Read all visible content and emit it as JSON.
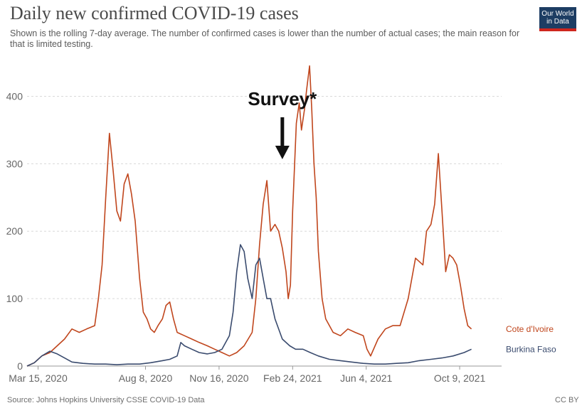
{
  "header": {
    "title": "Daily new confirmed COVID-19 cases",
    "subtitle": "Shown is the rolling 7-day average. The number of confirmed cases is lower than the number of actual cases; the main reason for that is limited testing.",
    "logo_line1": "Our World",
    "logo_line2": "in Data"
  },
  "footer": {
    "source": "Source: Johns Hopkins University CSSE COVID-19 Data",
    "license": "CC BY"
  },
  "annotation": {
    "text": "Survey*",
    "date": "2021-02-10"
  },
  "colors": {
    "cote_divoire": "#c0461d",
    "burkina_faso": "#3a4b6e",
    "grid": "#d9d9d9",
    "axis_text": "#666666"
  },
  "chart_data": {
    "type": "line",
    "title": "Daily new confirmed COVID-19 cases",
    "ylim": [
      0,
      450
    ],
    "yticks": [
      0,
      100,
      200,
      300,
      400
    ],
    "x_range": [
      "2020-02-29",
      "2021-12-05"
    ],
    "xticks": [
      {
        "date": "2020-03-15",
        "label": "Mar 15, 2020"
      },
      {
        "date": "2020-08-08",
        "label": "Aug 8, 2020"
      },
      {
        "date": "2020-11-16",
        "label": "Nov 16, 2020"
      },
      {
        "date": "2021-02-24",
        "label": "Feb 24, 2021"
      },
      {
        "date": "2021-06-04",
        "label": "Jun 4, 2021"
      },
      {
        "date": "2021-10-09",
        "label": "Oct 9, 2021"
      }
    ],
    "grid": "horizontal",
    "legend": "inline-right",
    "series": [
      {
        "name": "Cote d'Ivoire",
        "points": [
          [
            "2020-02-29",
            0
          ],
          [
            "2020-03-10",
            5
          ],
          [
            "2020-03-20",
            15
          ],
          [
            "2020-03-31",
            20
          ],
          [
            "2020-04-10",
            30
          ],
          [
            "2020-04-20",
            40
          ],
          [
            "2020-04-30",
            55
          ],
          [
            "2020-05-10",
            50
          ],
          [
            "2020-05-20",
            55
          ],
          [
            "2020-05-31",
            60
          ],
          [
            "2020-06-05",
            100
          ],
          [
            "2020-06-10",
            150
          ],
          [
            "2020-06-15",
            250
          ],
          [
            "2020-06-20",
            345
          ],
          [
            "2020-06-25",
            290
          ],
          [
            "2020-06-30",
            230
          ],
          [
            "2020-07-05",
            215
          ],
          [
            "2020-07-10",
            270
          ],
          [
            "2020-07-15",
            285
          ],
          [
            "2020-07-20",
            255
          ],
          [
            "2020-07-25",
            215
          ],
          [
            "2020-07-31",
            130
          ],
          [
            "2020-08-05",
            80
          ],
          [
            "2020-08-10",
            70
          ],
          [
            "2020-08-15",
            55
          ],
          [
            "2020-08-20",
            50
          ],
          [
            "2020-08-25",
            60
          ],
          [
            "2020-08-31",
            70
          ],
          [
            "2020-09-05",
            90
          ],
          [
            "2020-09-10",
            95
          ],
          [
            "2020-09-15",
            70
          ],
          [
            "2020-09-20",
            50
          ],
          [
            "2020-09-30",
            45
          ],
          [
            "2020-10-10",
            40
          ],
          [
            "2020-10-20",
            35
          ],
          [
            "2020-10-31",
            30
          ],
          [
            "2020-11-10",
            25
          ],
          [
            "2020-11-20",
            20
          ],
          [
            "2020-11-30",
            15
          ],
          [
            "2020-12-10",
            20
          ],
          [
            "2020-12-20",
            30
          ],
          [
            "2020-12-31",
            50
          ],
          [
            "2021-01-05",
            100
          ],
          [
            "2021-01-10",
            180
          ],
          [
            "2021-01-15",
            240
          ],
          [
            "2021-01-20",
            275
          ],
          [
            "2021-01-25",
            200
          ],
          [
            "2021-01-31",
            210
          ],
          [
            "2021-02-05",
            200
          ],
          [
            "2021-02-10",
            175
          ],
          [
            "2021-02-15",
            140
          ],
          [
            "2021-02-18",
            100
          ],
          [
            "2021-02-21",
            120
          ],
          [
            "2021-02-24",
            230
          ],
          [
            "2021-03-01",
            360
          ],
          [
            "2021-03-05",
            390
          ],
          [
            "2021-03-08",
            350
          ],
          [
            "2021-03-12",
            380
          ],
          [
            "2021-03-15",
            410
          ],
          [
            "2021-03-19",
            445
          ],
          [
            "2021-03-22",
            380
          ],
          [
            "2021-03-25",
            300
          ],
          [
            "2021-03-28",
            250
          ],
          [
            "2021-03-31",
            170
          ],
          [
            "2021-04-05",
            100
          ],
          [
            "2021-04-10",
            70
          ],
          [
            "2021-04-20",
            50
          ],
          [
            "2021-04-30",
            45
          ],
          [
            "2021-05-10",
            55
          ],
          [
            "2021-05-20",
            50
          ],
          [
            "2021-05-31",
            45
          ],
          [
            "2021-06-05",
            25
          ],
          [
            "2021-06-10",
            15
          ],
          [
            "2021-06-20",
            40
          ],
          [
            "2021-06-30",
            55
          ],
          [
            "2021-07-10",
            60
          ],
          [
            "2021-07-20",
            60
          ],
          [
            "2021-07-31",
            100
          ],
          [
            "2021-08-10",
            160
          ],
          [
            "2021-08-20",
            150
          ],
          [
            "2021-08-25",
            200
          ],
          [
            "2021-08-31",
            210
          ],
          [
            "2021-09-05",
            240
          ],
          [
            "2021-09-10",
            315
          ],
          [
            "2021-09-15",
            230
          ],
          [
            "2021-09-20",
            140
          ],
          [
            "2021-09-25",
            165
          ],
          [
            "2021-09-30",
            160
          ],
          [
            "2021-10-05",
            150
          ],
          [
            "2021-10-10",
            120
          ],
          [
            "2021-10-15",
            85
          ],
          [
            "2021-10-20",
            60
          ],
          [
            "2021-10-25",
            55
          ]
        ]
      },
      {
        "name": "Burkina Faso",
        "points": [
          [
            "2020-02-29",
            0
          ],
          [
            "2020-03-10",
            5
          ],
          [
            "2020-03-20",
            15
          ],
          [
            "2020-03-31",
            22
          ],
          [
            "2020-04-10",
            18
          ],
          [
            "2020-04-20",
            12
          ],
          [
            "2020-04-30",
            6
          ],
          [
            "2020-05-15",
            4
          ],
          [
            "2020-05-31",
            3
          ],
          [
            "2020-06-15",
            3
          ],
          [
            "2020-06-30",
            2
          ],
          [
            "2020-07-15",
            3
          ],
          [
            "2020-07-31",
            3
          ],
          [
            "2020-08-15",
            5
          ],
          [
            "2020-08-31",
            8
          ],
          [
            "2020-09-10",
            10
          ],
          [
            "2020-09-20",
            15
          ],
          [
            "2020-09-25",
            35
          ],
          [
            "2020-09-30",
            30
          ],
          [
            "2020-10-10",
            25
          ],
          [
            "2020-10-20",
            20
          ],
          [
            "2020-10-31",
            18
          ],
          [
            "2020-11-10",
            20
          ],
          [
            "2020-11-20",
            25
          ],
          [
            "2020-11-30",
            45
          ],
          [
            "2020-12-05",
            80
          ],
          [
            "2020-12-10",
            140
          ],
          [
            "2020-12-15",
            180
          ],
          [
            "2020-12-20",
            170
          ],
          [
            "2020-12-25",
            130
          ],
          [
            "2020-12-31",
            100
          ],
          [
            "2021-01-05",
            150
          ],
          [
            "2021-01-10",
            160
          ],
          [
            "2021-01-15",
            130
          ],
          [
            "2021-01-20",
            100
          ],
          [
            "2021-01-25",
            100
          ],
          [
            "2021-01-31",
            70
          ],
          [
            "2021-02-10",
            40
          ],
          [
            "2021-02-20",
            30
          ],
          [
            "2021-02-28",
            25
          ],
          [
            "2021-03-10",
            25
          ],
          [
            "2021-03-20",
            20
          ],
          [
            "2021-03-31",
            15
          ],
          [
            "2021-04-15",
            10
          ],
          [
            "2021-04-30",
            8
          ],
          [
            "2021-05-15",
            6
          ],
          [
            "2021-05-31",
            4
          ],
          [
            "2021-06-15",
            3
          ],
          [
            "2021-06-30",
            3
          ],
          [
            "2021-07-15",
            4
          ],
          [
            "2021-07-31",
            5
          ],
          [
            "2021-08-15",
            8
          ],
          [
            "2021-08-31",
            10
          ],
          [
            "2021-09-15",
            12
          ],
          [
            "2021-09-30",
            15
          ],
          [
            "2021-10-15",
            20
          ],
          [
            "2021-10-25",
            25
          ]
        ]
      }
    ]
  }
}
